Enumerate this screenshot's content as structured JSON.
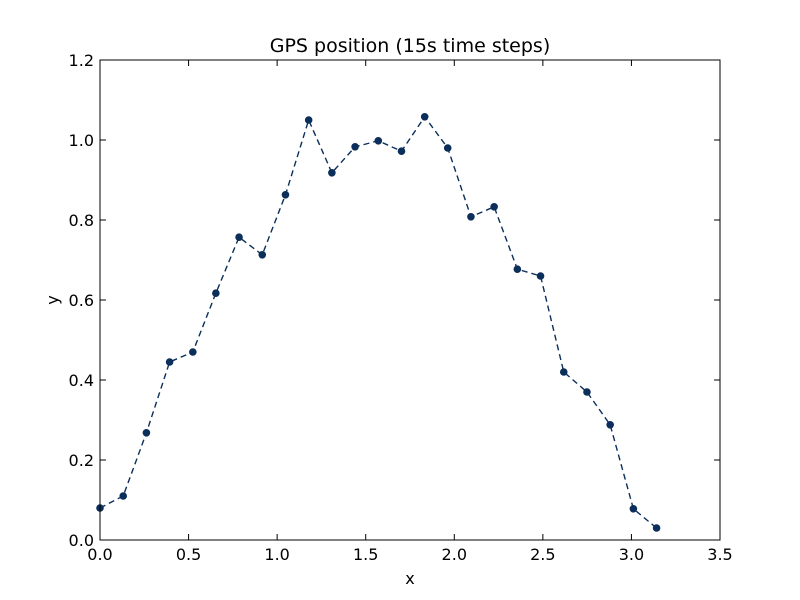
{
  "chart_data": {
    "type": "line",
    "title": "GPS position (15s time steps)",
    "xlabel": "x",
    "ylabel": "y",
    "xlim": [
      0.0,
      3.5
    ],
    "ylim": [
      0.0,
      1.2
    ],
    "xticks": [
      "0.0",
      "0.5",
      "1.0",
      "1.5",
      "2.0",
      "2.5",
      "3.0",
      "3.5"
    ],
    "yticks": [
      "0.0",
      "0.2",
      "0.4",
      "0.6",
      "0.8",
      "1.0",
      "1.2"
    ],
    "grid": false,
    "line_style": "dashed",
    "marker": "circle",
    "color": "#0b2f5a",
    "series": [
      {
        "x": [
          0.0,
          0.131,
          0.262,
          0.393,
          0.524,
          0.654,
          0.785,
          0.916,
          1.047,
          1.178,
          1.309,
          1.44,
          1.571,
          1.702,
          1.833,
          1.963,
          2.094,
          2.225,
          2.356,
          2.487,
          2.618,
          2.749,
          2.88,
          3.011,
          3.142
        ],
        "y": [
          0.08,
          0.11,
          0.268,
          0.445,
          0.47,
          0.617,
          0.757,
          0.713,
          0.863,
          1.05,
          0.918,
          0.983,
          0.998,
          0.972,
          1.058,
          0.98,
          0.808,
          0.833,
          0.677,
          0.66,
          0.42,
          0.37,
          0.288,
          0.078,
          0.03
        ]
      }
    ]
  }
}
